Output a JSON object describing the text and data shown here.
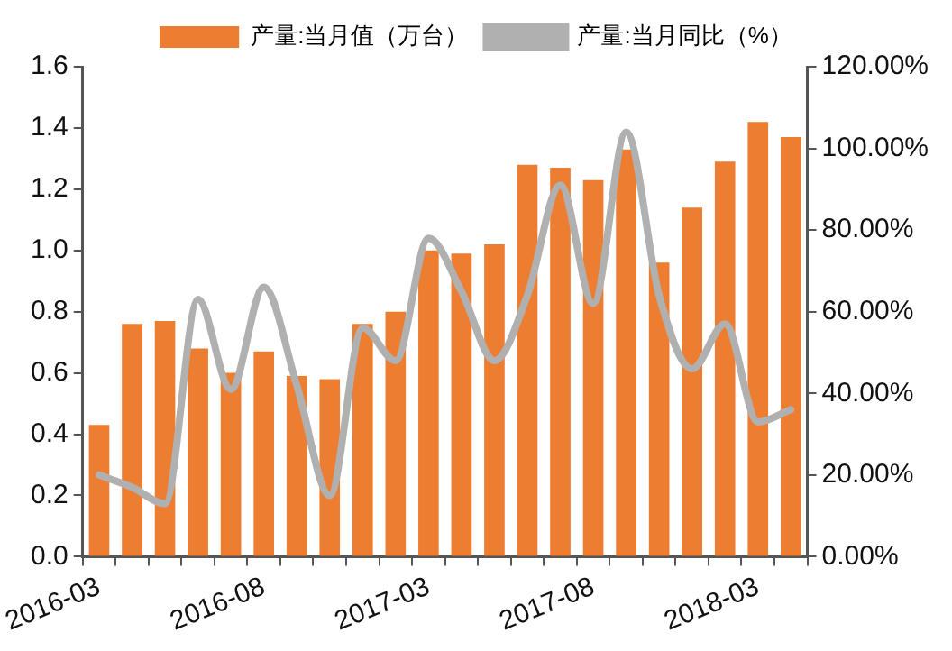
{
  "chart_data": {
    "type": "bar",
    "categories": [
      "2016-03",
      null,
      null,
      null,
      null,
      "2016-08",
      null,
      null,
      null,
      null,
      "2017-03",
      null,
      null,
      null,
      null,
      "2017-08",
      null,
      null,
      null,
      null,
      "2018-03",
      null
    ],
    "series": [
      {
        "name": "产量:当月值（万台）",
        "color": "#ed7d31",
        "values": [
          0.43,
          0.76,
          0.77,
          0.68,
          0.6,
          0.67,
          0.59,
          0.58,
          0.76,
          0.8,
          1.0,
          0.99,
          1.02,
          1.28,
          1.27,
          1.23,
          1.33,
          0.96,
          1.14,
          1.29,
          1.42,
          1.37
        ]
      },
      {
        "name": "产量:当月同比（%）",
        "type": "line",
        "axis": "y2",
        "color": "#b0b0b0",
        "values": [
          20,
          17,
          13,
          63,
          41,
          66,
          42,
          15,
          56,
          48,
          78,
          65,
          48,
          64,
          91,
          62,
          104,
          64,
          46,
          57,
          33,
          36
        ]
      }
    ],
    "ylim": [
      0,
      1.6
    ],
    "yticks": [
      {
        "value": 0,
        "label": "0.0"
      },
      0.2,
      0.4,
      0.6,
      0.8,
      {
        "value": 1,
        "label": "1.0"
      },
      1.2,
      1.4,
      1.6
    ],
    "y2lim": [
      0,
      120
    ],
    "y2ticks": [
      {
        "value": 0,
        "label": "0.00%"
      },
      {
        "value": 20,
        "label": "20.00%"
      },
      {
        "value": 40,
        "label": "40.00%"
      },
      {
        "value": 60,
        "label": "60.00%"
      },
      {
        "value": 80,
        "label": "80.00%"
      },
      {
        "value": 100,
        "label": "100.00%"
      },
      {
        "value": 120,
        "label": "120.00%"
      }
    ],
    "legend": "top"
  }
}
